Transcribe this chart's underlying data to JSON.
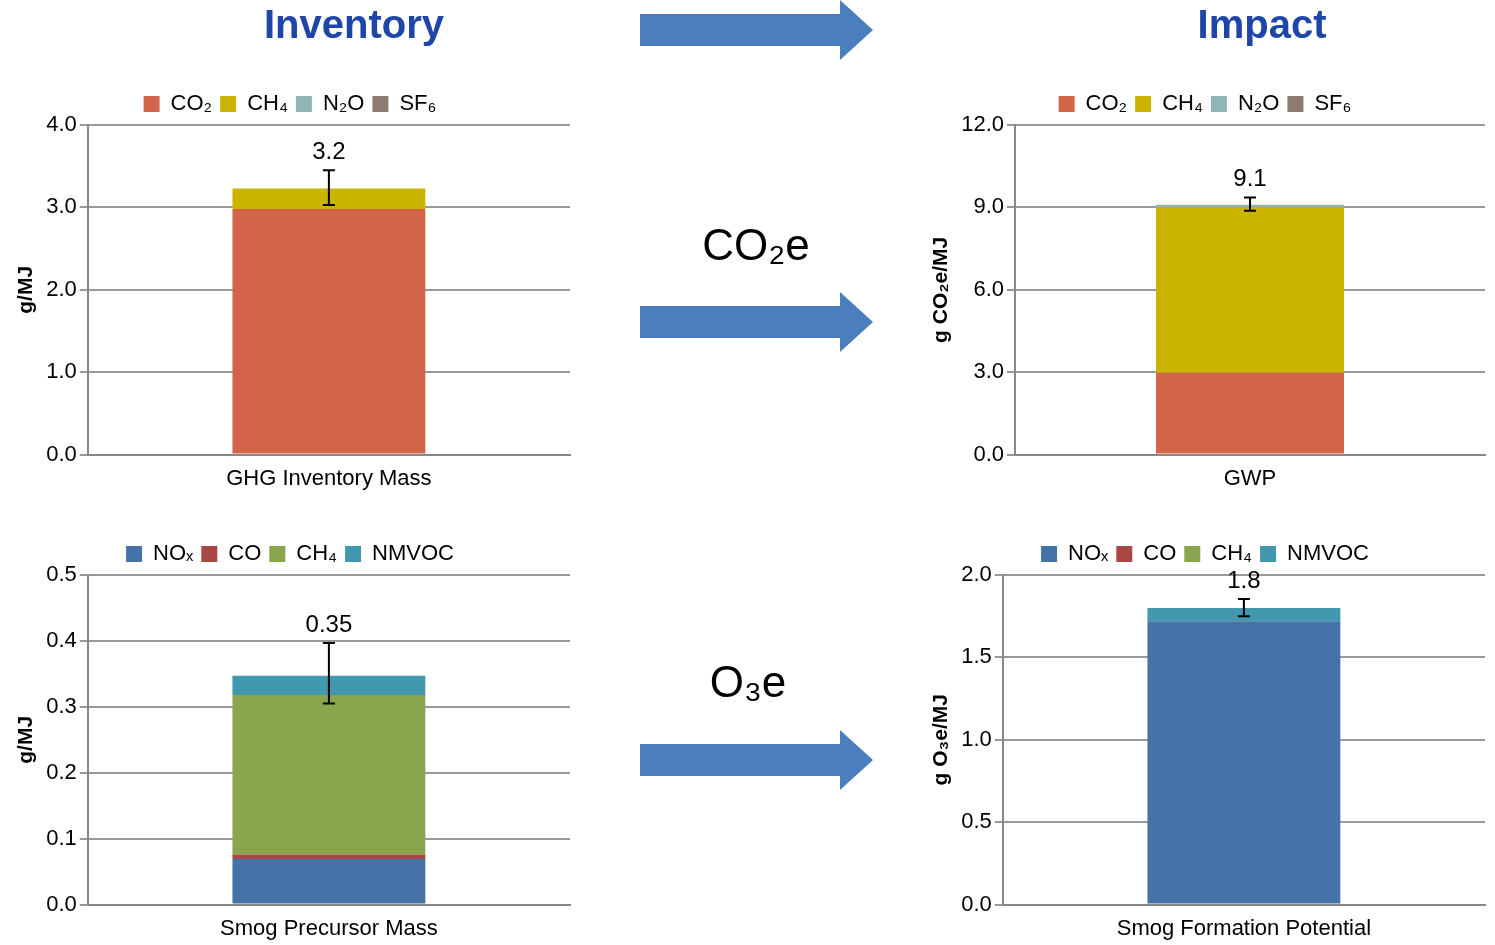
{
  "chart_data": [
    {
      "type": "bar",
      "title": "Inventory",
      "stacked": true,
      "categories": [
        "GHG Inventory Mass"
      ],
      "ylabel": "g/MJ",
      "legend": "top",
      "grid": "y",
      "series": [
        {
          "name": "CO₂",
          "color": "#d2644a",
          "values": [
            2.98
          ]
        },
        {
          "name": "CH₄",
          "color": "#cbb400",
          "values": [
            0.25
          ]
        },
        {
          "name": "N₂O",
          "color": "#8fb6b4",
          "values": [
            0
          ]
        },
        {
          "name": "SF₆",
          "color": "#8c7b70",
          "values": [
            0
          ],
          "errors": [
            [
              3.03,
              3.45
            ]
          ]
        }
      ],
      "totals": [
        "3.2"
      ],
      "ylim": [
        0,
        4
      ],
      "yticks": [
        {
          "value": 0,
          "label": "0.0"
        },
        {
          "value": 1,
          "label": "1.0"
        },
        {
          "value": 2,
          "label": "2.0"
        },
        {
          "value": 3,
          "label": "3.0"
        },
        {
          "value": 4,
          "label": "4.0"
        }
      ]
    },
    {
      "type": "bar",
      "title": "Impact",
      "stacked": true,
      "categories": [
        "GWP"
      ],
      "ylabel": "g CO₂e/MJ",
      "legend": "top",
      "grid": "y",
      "annotations": [
        "CO₂e"
      ],
      "series": [
        {
          "name": "CO₂",
          "color": "#d2644a",
          "values": [
            2.98
          ]
        },
        {
          "name": "CH₄",
          "color": "#cbb400",
          "values": [
            6.03
          ]
        },
        {
          "name": "N₂O",
          "color": "#8fb6b4",
          "values": [
            0.09
          ]
        },
        {
          "name": "SF₆",
          "color": "#8c7b70",
          "values": [
            0
          ],
          "errors": [
            [
              8.88,
              9.36
            ]
          ]
        }
      ],
      "totals": [
        "9.1"
      ],
      "ylim": [
        0,
        12
      ],
      "yticks": [
        {
          "value": 0,
          "label": "0.0"
        },
        {
          "value": 3,
          "label": "3.0"
        },
        {
          "value": 6,
          "label": "6.0"
        },
        {
          "value": 9,
          "label": "9.0"
        },
        {
          "value": 12,
          "label": "12.0"
        }
      ]
    },
    {
      "type": "bar",
      "stacked": true,
      "categories": [
        "Smog Precursor Mass"
      ],
      "ylabel": "g/MJ",
      "legend": "top",
      "grid": "y",
      "series": [
        {
          "name": "NOₓ",
          "color": "#4572a7",
          "values": [
            0.069
          ]
        },
        {
          "name": "CO",
          "color": "#aa4643",
          "values": [
            0.007
          ]
        },
        {
          "name": "CH₄",
          "color": "#89a54e",
          "values": [
            0.242
          ]
        },
        {
          "name": "NMVOC",
          "color": "#4198af",
          "values": [
            0.029
          ],
          "errors": [
            [
              0.305,
              0.397
            ]
          ]
        }
      ],
      "totals": [
        "0.35"
      ],
      "ylim": [
        0,
        0.5
      ],
      "yticks": [
        {
          "value": 0,
          "label": "0.0"
        },
        0.1,
        0.2,
        0.3,
        0.4,
        0.5
      ]
    },
    {
      "type": "bar",
      "stacked": true,
      "categories": [
        "Smog Formation Potential"
      ],
      "ylabel": "g O₃e/MJ",
      "legend": "top",
      "grid": "y",
      "annotations": [
        "O₃e"
      ],
      "series": [
        {
          "name": "NOₓ",
          "color": "#4572a7",
          "values": [
            1.72
          ]
        },
        {
          "name": "CO",
          "color": "#aa4643",
          "values": [
            0
          ]
        },
        {
          "name": "CH₄",
          "color": "#89a54e",
          "values": [
            0
          ]
        },
        {
          "name": "NMVOC",
          "color": "#4198af",
          "values": [
            0.08
          ],
          "errors": [
            [
              1.75,
              1.855
            ]
          ]
        }
      ],
      "totals": [
        "1.8"
      ],
      "ylim": [
        0,
        2
      ],
      "yticks": [
        {
          "value": 0,
          "label": "0.0"
        },
        {
          "value": 0.5,
          "label": "0.5"
        },
        {
          "value": 1,
          "label": "1.0"
        },
        {
          "value": 1.5,
          "label": "1.5"
        },
        {
          "value": 2,
          "label": "2.0"
        }
      ]
    }
  ]
}
